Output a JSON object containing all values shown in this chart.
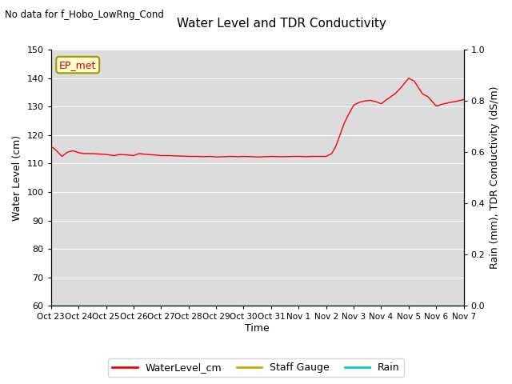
{
  "title": "Water Level and TDR Conductivity",
  "subtitle": "No data for f_Hobo_LowRng_Cond",
  "ylabel_left": "Water Level (cm)",
  "ylabel_right": "Rain (mm), TDR Conductivity (dS/m)",
  "xlabel": "Time",
  "ylim_left": [
    60,
    150
  ],
  "ylim_right": [
    0.0,
    1.0
  ],
  "yticks_left": [
    60,
    70,
    80,
    90,
    100,
    110,
    120,
    130,
    140,
    150
  ],
  "yticks_right": [
    0.0,
    0.2,
    0.4,
    0.6,
    0.8,
    1.0
  ],
  "xtick_labels": [
    "Oct 23",
    "Oct 24",
    "Oct 25",
    "Oct 26",
    "Oct 27",
    "Oct 28",
    "Oct 29",
    "Oct 30",
    "Oct 31",
    "Nov 1",
    "Nov 2",
    "Nov 3",
    "Nov 4",
    "Nov 5",
    "Nov 6",
    "Nov 7"
  ],
  "annotation_text": "EP_met",
  "bg_color": "#dcdcdc",
  "plot_bg_color": "#dcdcdc",
  "line_color_water": "#ff0000",
  "line_color_staff": "#ccaa00",
  "line_color_rain": "#00cccc",
  "legend_labels": [
    "WaterLevel_cm",
    "Staff Gauge",
    "Rain"
  ],
  "water_level_data_x": [
    0,
    0.08,
    0.15,
    0.25,
    0.4,
    0.6,
    0.8,
    1.0,
    1.2,
    1.5,
    2.0,
    2.3,
    2.5,
    2.8,
    3.0,
    3.2,
    3.5,
    3.8,
    4.0,
    4.3,
    4.5,
    4.8,
    5.0,
    5.3,
    5.5,
    5.8,
    6.0,
    6.3,
    6.5,
    6.8,
    7.0,
    7.3,
    7.5,
    7.8,
    8.0,
    8.3,
    8.5,
    8.8,
    9.0,
    9.3,
    9.5,
    9.8,
    10.0,
    10.2,
    10.35,
    10.5,
    10.65,
    10.8,
    11.0,
    11.2,
    11.4,
    11.6,
    11.8,
    12.0,
    12.2,
    12.5,
    12.7,
    13.0,
    13.2,
    13.5,
    13.7,
    14.0,
    14.2,
    14.5,
    14.7,
    15.0
  ],
  "water_level_data_y": [
    116.0,
    115.5,
    115.0,
    114.0,
    112.5,
    114.0,
    114.5,
    113.8,
    113.5,
    113.5,
    113.2,
    112.8,
    113.2,
    113.0,
    112.8,
    113.5,
    113.2,
    113.0,
    112.8,
    112.8,
    112.7,
    112.6,
    112.5,
    112.5,
    112.4,
    112.5,
    112.3,
    112.4,
    112.5,
    112.4,
    112.5,
    112.4,
    112.3,
    112.4,
    112.5,
    112.4,
    112.4,
    112.5,
    112.5,
    112.4,
    112.5,
    112.5,
    112.5,
    113.5,
    116.0,
    120.0,
    124.0,
    127.0,
    130.5,
    131.5,
    132.0,
    132.2,
    131.8,
    131.0,
    132.5,
    134.5,
    136.5,
    140.0,
    139.0,
    134.5,
    133.5,
    130.2,
    130.8,
    131.5,
    131.8,
    132.5
  ]
}
